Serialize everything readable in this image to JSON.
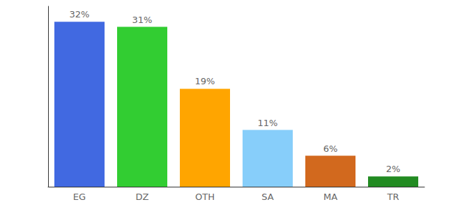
{
  "chart_data": {
    "type": "bar",
    "categories": [
      "EG",
      "DZ",
      "OTH",
      "SA",
      "MA",
      "TR"
    ],
    "values": [
      32,
      31,
      19,
      11,
      6,
      2
    ],
    "value_labels": [
      "32%",
      "31%",
      "19%",
      "11%",
      "6%",
      "2%"
    ],
    "colors": [
      "#4169e1",
      "#32cd32",
      "#ffa500",
      "#87cefa",
      "#d2691e",
      "#228b22"
    ],
    "ylim": [
      0,
      35
    ],
    "yticks": [],
    "grid": false,
    "data_labels": true,
    "tick_labels": "x"
  }
}
